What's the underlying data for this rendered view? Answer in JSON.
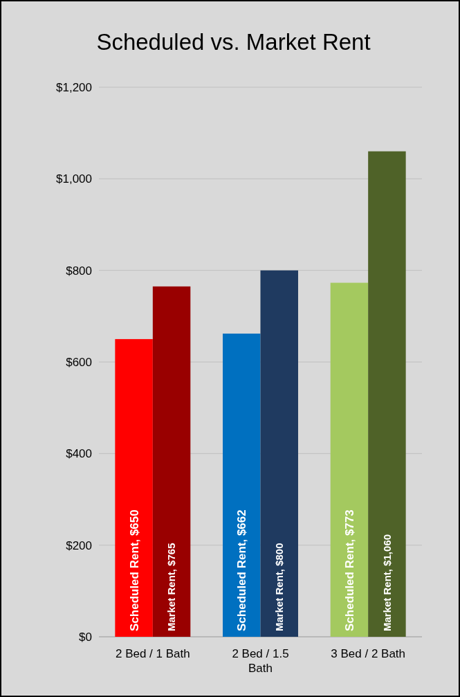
{
  "chart_data": {
    "type": "bar",
    "title": "Scheduled vs. Market Rent",
    "categories": [
      "2 Bed / 1 Bath",
      "2 Bed / 1.5 Bath",
      "3 Bed / 2 Bath"
    ],
    "series": [
      {
        "colors": [
          "#ff0000",
          "#0070c0",
          "#a4c95f"
        ],
        "values": [
          650,
          662,
          773
        ],
        "value_labels": [
          "Scheduled Rent, $650",
          "Scheduled Rent, $662",
          "Scheduled Rent, $773"
        ]
      },
      {
        "colors": [
          "#990000",
          "#1f3a60",
          "#4f6228"
        ],
        "values": [
          765,
          800,
          1060
        ],
        "value_labels": [
          "Market Rent, $765",
          "Market Rent, $800",
          "Market Rent, $1,060"
        ]
      }
    ],
    "ylim": [
      0,
      1200
    ],
    "yticks": [
      {
        "value": 0,
        "label": "$0"
      },
      {
        "value": 200,
        "label": "$200"
      },
      {
        "value": 400,
        "label": "$400"
      },
      {
        "value": 600,
        "label": "$600"
      },
      {
        "value": 800,
        "label": "$800"
      },
      {
        "value": 1000,
        "label": "$1,000"
      },
      {
        "value": 1200,
        "label": "$1,200"
      }
    ],
    "grid": "y"
  }
}
